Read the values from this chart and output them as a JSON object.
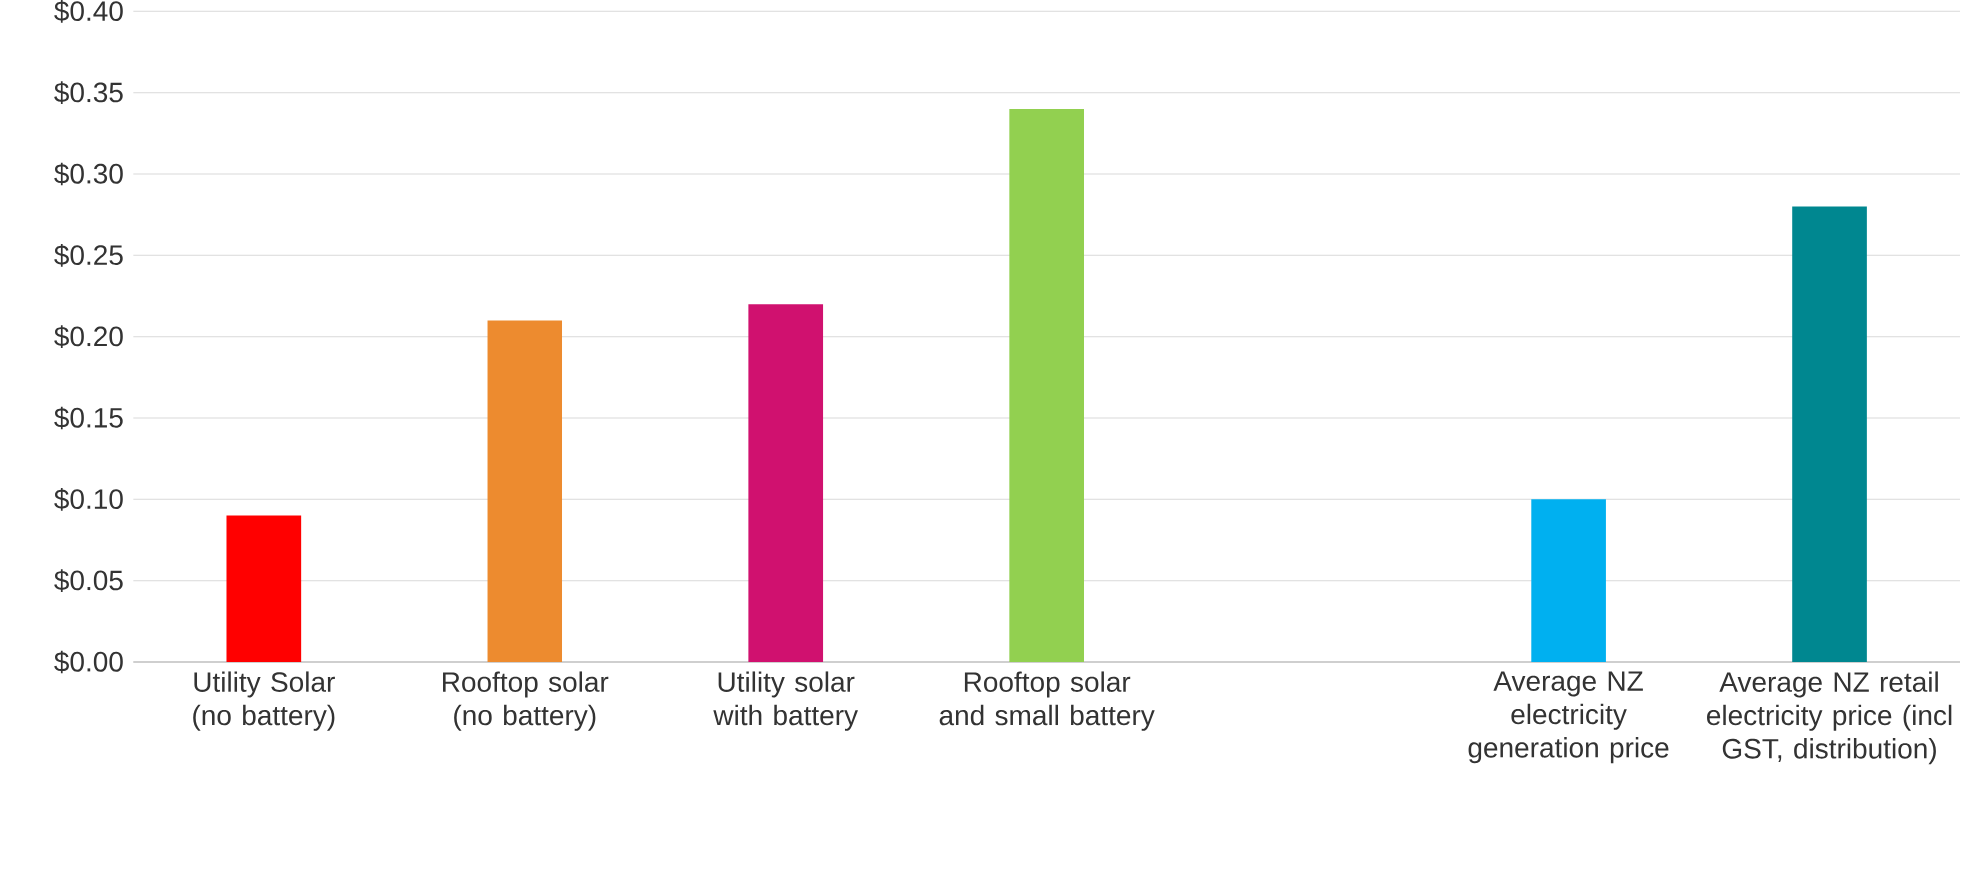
{
  "chart_data": {
    "type": "bar",
    "categories": [
      "Utility Solar (no battery)",
      "Rooftop solar (no battery)",
      "Utility solar with battery",
      "Rooftop solar and small battery",
      null,
      "Average NZ electricity generation price",
      "Average NZ retail electricity price (incl GST, distribution)"
    ],
    "values": [
      0.09,
      0.21,
      0.22,
      0.34,
      null,
      0.1,
      0.28
    ],
    "colors": [
      "#ff0000",
      "#ed8b2f",
      "#d0116f",
      "#92d050",
      "#ffffff",
      "#00b0f0",
      "#008790"
    ],
    "ylim": [
      0,
      0.4
    ],
    "yticks": [
      {
        "value": 0,
        "label": "$0.00"
      },
      {
        "value": 0.05,
        "label": "$0.05"
      },
      {
        "value": 0.1,
        "label": "$0.10"
      },
      {
        "value": 0.15,
        "label": "$0.15"
      },
      {
        "value": 0.2,
        "label": "$0.20"
      },
      {
        "value": 0.25,
        "label": "$0.25"
      },
      {
        "value": 0.3,
        "label": "$0.30"
      },
      {
        "value": 0.35,
        "label": "$0.35"
      },
      {
        "value": 0.4,
        "label": "$0.40"
      }
    ],
    "grid": "y"
  }
}
